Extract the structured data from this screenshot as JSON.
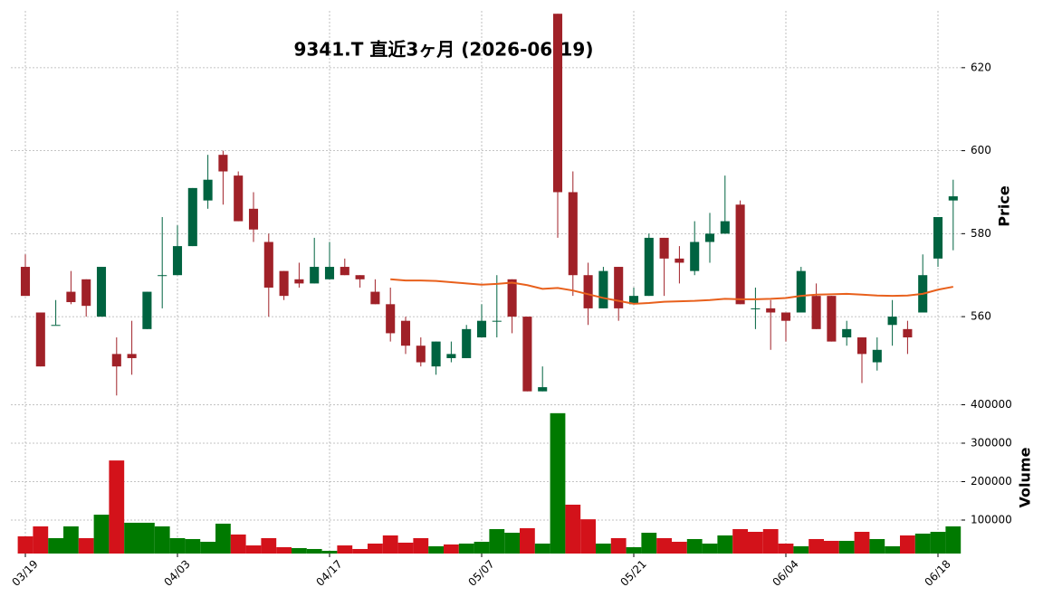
{
  "chart_data": {
    "type": "candlestick",
    "title": "9341.T  直近3ヶ月  (2026-06-19)",
    "ylabel": "Price",
    "y2label": "Volume",
    "categories": [
      "03/19",
      null,
      null,
      null,
      null,
      null,
      null,
      null,
      null,
      null,
      "04/03",
      null,
      null,
      null,
      null,
      null,
      null,
      null,
      null,
      null,
      "04/17",
      null,
      null,
      null,
      null,
      null,
      null,
      null,
      null,
      null,
      "05/07",
      null,
      null,
      null,
      null,
      null,
      null,
      null,
      null,
      null,
      "05/21",
      null,
      null,
      null,
      null,
      null,
      null,
      null,
      null,
      null,
      "06/04",
      null,
      null,
      null,
      null,
      null,
      null,
      null,
      null,
      null,
      "06/18",
      null
    ],
    "open": [
      572,
      561,
      558,
      566,
      569,
      560,
      551,
      551,
      557,
      570,
      570,
      577,
      588,
      599,
      594,
      586,
      578,
      571,
      569,
      568,
      569,
      572,
      570,
      566,
      563,
      559,
      553,
      548,
      550,
      550,
      555,
      559,
      569,
      560,
      542,
      633,
      590,
      570,
      562,
      572,
      563,
      565,
      579,
      574,
      571,
      578,
      580,
      587,
      562,
      562,
      561,
      561,
      565,
      565,
      555,
      555,
      549,
      558,
      557,
      561,
      574,
      588
    ],
    "high": [
      575,
      561,
      564,
      571,
      569,
      572,
      555,
      559,
      566,
      584,
      582,
      591,
      599,
      600,
      595,
      590,
      580,
      571,
      573,
      579,
      578,
      574,
      570,
      569,
      567,
      560,
      555,
      554,
      554,
      558,
      563,
      570,
      569,
      560,
      548,
      633,
      595,
      573,
      572,
      572,
      567,
      580,
      579,
      577,
      583,
      585,
      594,
      588,
      567,
      564,
      561,
      572,
      568,
      565,
      559,
      555,
      555,
      564,
      559,
      575,
      584,
      593
    ],
    "low": [
      565,
      548,
      558,
      563,
      560,
      560,
      541,
      546,
      557,
      562,
      570,
      577,
      586,
      587,
      583,
      578,
      560,
      564,
      567,
      568,
      569,
      570,
      567,
      563,
      554,
      551,
      548,
      546,
      549,
      550,
      555,
      555,
      556,
      542,
      542,
      579,
      565,
      558,
      562,
      559,
      563,
      565,
      565,
      568,
      570,
      573,
      580,
      563,
      557,
      552,
      554,
      561,
      557,
      554,
      553,
      544,
      547,
      553,
      551,
      561,
      572,
      576
    ],
    "close": [
      565,
      548,
      558,
      563.5,
      562.6,
      572,
      548,
      550,
      566,
      570,
      577,
      591,
      593,
      595,
      583,
      581,
      567,
      565,
      568,
      572,
      572,
      570,
      569,
      563,
      556,
      553,
      549,
      554,
      551,
      557,
      559,
      559,
      560,
      542,
      543,
      590,
      570,
      562,
      571,
      562,
      565,
      579,
      574,
      573,
      578,
      580,
      583,
      563,
      562,
      561,
      559,
      571,
      557,
      554,
      557,
      551,
      552,
      560,
      555,
      570,
      584,
      589
    ],
    "volume": [
      57600,
      83500,
      53000,
      83500,
      53000,
      114000,
      255000,
      93000,
      93000,
      83500,
      53000,
      50600,
      43500,
      90600,
      62400,
      34000,
      53000,
      29400,
      27000,
      24700,
      20000,
      34000,
      24700,
      38800,
      60000,
      41200,
      53000,
      31800,
      36500,
      38800,
      43500,
      76500,
      67000,
      78800,
      38800,
      378000,
      140000,
      102000,
      38800,
      53000,
      29400,
      67000,
      53000,
      43500,
      50600,
      38800,
      60000,
      76500,
      69400,
      76500,
      38800,
      31800,
      50600,
      45900,
      45900,
      69400,
      50600,
      31800,
      60000,
      64700,
      69400,
      83500
    ],
    "ma": [
      null,
      null,
      null,
      null,
      null,
      null,
      null,
      null,
      null,
      null,
      null,
      null,
      null,
      null,
      null,
      null,
      null,
      null,
      null,
      null,
      null,
      null,
      null,
      null,
      569,
      568.7,
      568.7,
      568.6,
      568.3,
      568.0,
      567.7,
      567.9,
      568.2,
      567.6,
      566.7,
      566.9,
      566.3,
      565.4,
      564.5,
      563.8,
      563.1,
      563.3,
      563.6,
      563.7,
      563.8,
      564.0,
      564.3,
      564.2,
      564.2,
      564.3,
      564.5,
      565.0,
      565.3,
      565.4,
      565.5,
      565.3,
      565.1,
      565.0,
      565.1,
      565.5,
      566.5,
      567.2
    ],
    "up_color": "#006340",
    "down_color": "#a02128",
    "volume_up_color": "#007a00",
    "volume_down_color": "#d3121a",
    "ma_color": "#e8601c",
    "ylim": [
      540.4,
      633.7
    ],
    "yticks": [
      560,
      580,
      600,
      620
    ],
    "y2lim": [
      12900,
      417600
    ],
    "y2ticks": [
      100000,
      200000,
      300000,
      400000
    ],
    "grid": true
  }
}
